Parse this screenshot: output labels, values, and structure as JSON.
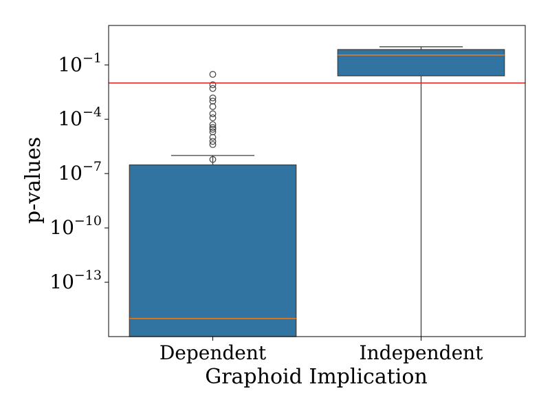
{
  "chart_data": {
    "type": "boxplot",
    "title": "",
    "xlabel": "Graphoid Implication",
    "ylabel": "p-values",
    "yscale": "log",
    "ylim": [
      1e-16,
      15
    ],
    "yticks": [
      {
        "value": 0.1,
        "base": "10",
        "exp": "−1"
      },
      {
        "value": 0.0001,
        "base": "10",
        "exp": "−4"
      },
      {
        "value": 1e-07,
        "base": "10",
        "exp": "−7"
      },
      {
        "value": 1e-10,
        "base": "10",
        "exp": "−10"
      },
      {
        "value": 1e-13,
        "base": "10",
        "exp": "−13"
      }
    ],
    "categories": [
      "Dependent",
      "Independent"
    ],
    "boxes": [
      {
        "category": "Dependent",
        "whisker_low": 1e-16,
        "q1": 1e-16,
        "median": 1e-15,
        "q3": 3e-07,
        "whisker_high": 1e-06,
        "outliers": [
          0.03,
          0.008,
          0.005,
          0.0015,
          0.001,
          0.0005,
          0.0002,
          0.00012,
          5e-05,
          3.5e-05,
          2.8e-05,
          2e-05,
          1e-05,
          6e-06,
          4e-06,
          6e-07
        ]
      },
      {
        "category": "Independent",
        "whisker_low": 1e-16,
        "q1": 0.025,
        "median": 0.35,
        "q3": 0.7,
        "whisker_high": 1.0,
        "outliers": []
      }
    ],
    "reference_line": {
      "value": 0.01,
      "color": "#d62728"
    },
    "colors": {
      "box_fill": "#3274a1",
      "box_edge": "#3f3f3f",
      "median": "#e67e22",
      "whisker": "#3f3f3f",
      "outlier_edge": "#3f3f3f"
    },
    "grid": false,
    "legend": "none"
  }
}
